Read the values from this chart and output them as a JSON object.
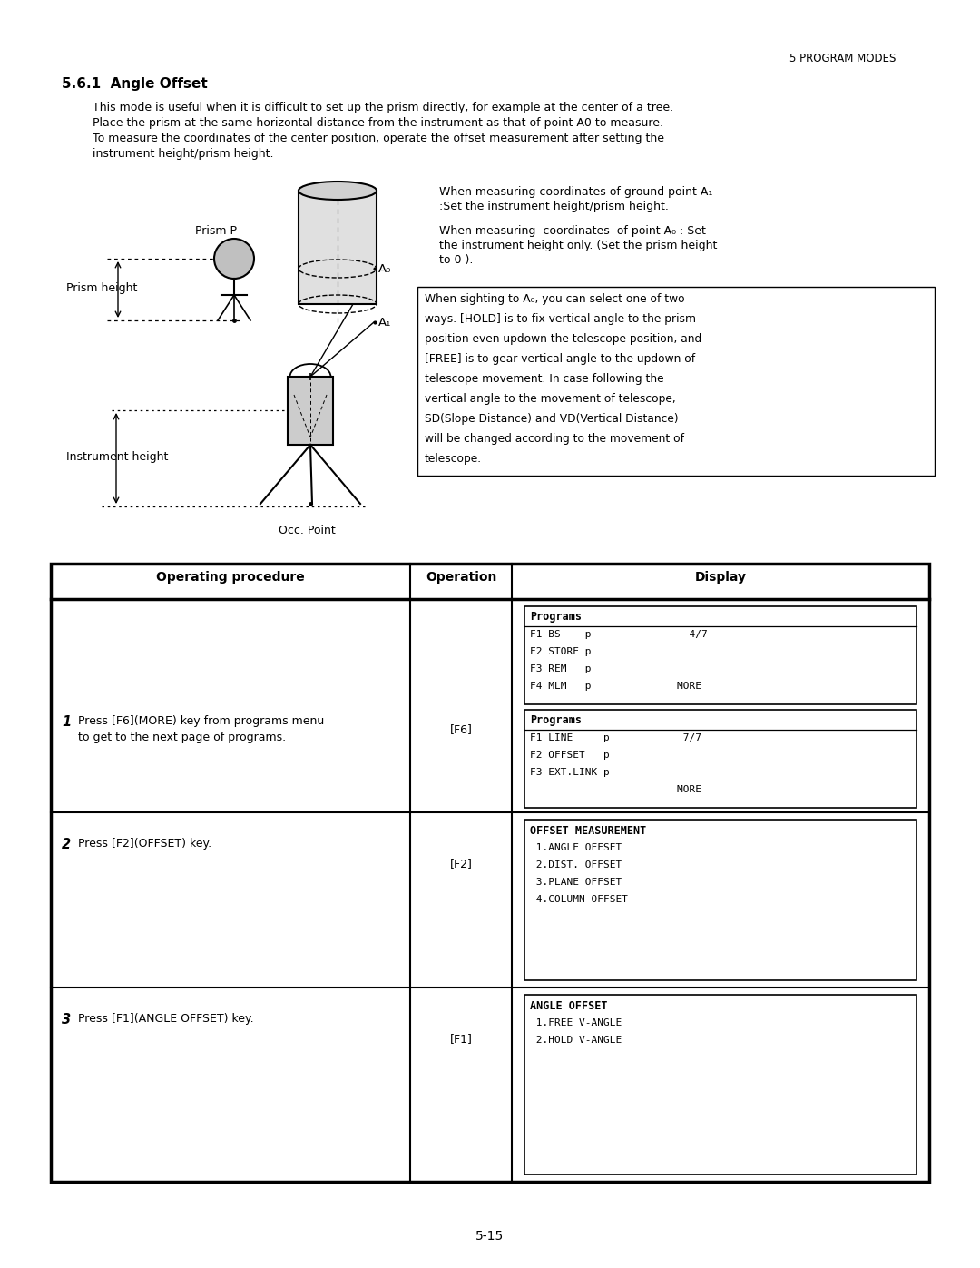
{
  "page_header": "5 PROGRAM MODES",
  "section_title": "5.6.1  Angle Offset",
  "section_text_line1": "This mode is useful when it is difficult to set up the prism directly, for example at the center of a tree.",
  "section_text_line2": "Place the prism at the same horizontal distance from the instrument as that of point A0 to measure.",
  "section_text_line3": "To measure the coordinates of the center position, operate the offset measurement after setting the",
  "section_text_line4": "instrument height/prism height.",
  "right_text1_line1": "When measuring coordinates of ground point A₁",
  "right_text1_line2": ":Set the instrument height/prism height.",
  "right_text2_line1": "When measuring  coordinates  of point A₀ : Set",
  "right_text2_line2": "the instrument height only. (Set the prism height",
  "right_text2_line3": "to 0 ).",
  "box_text_lines": [
    "When sighting to A₀, you can select one of two",
    "ways. [HOLD] is to fix vertical angle to the prism",
    "position even updown the telescope position, and",
    "[FREE] is to gear vertical angle to the updown of",
    "telescope movement. In case following the",
    "vertical angle to the movement of telescope,",
    "SD(Slope Distance) and VD(Vertical Distance)",
    "will be changed according to the movement of",
    "telescope."
  ],
  "label_prism_p": "Prism P",
  "label_a0": "A₀",
  "label_a1": "A₁",
  "label_prism_height": "Prism height",
  "label_instrument_height": "Instrument height",
  "label_occ_point": "Occ. Point",
  "table_col1": "Operating procedure",
  "table_col2": "Operation",
  "table_col3": "Display",
  "row1_num": "1",
  "row1_proc_line1": "Press [F6](MORE) key from programs menu",
  "row1_proc_line2": "to get to the next page of programs.",
  "row1_op": "[F6]",
  "row1_display1_title": "Programs",
  "row1_display1_lines": [
    "F1 BS    p                4/7",
    "F2 STORE p",
    "F3 REM   p",
    "F4 MLM   p              MORE"
  ],
  "row1_display2_title": "Programs",
  "row1_display2_lines": [
    "F1 LINE     p            7/7",
    "F2 OFFSET   p",
    "F3 EXT.LINK p",
    "                        MORE"
  ],
  "row2_num": "2",
  "row2_proc": "Press [F2](OFFSET) key.",
  "row2_op": "[F2]",
  "row2_display_title": "OFFSET MEASUREMENT",
  "row2_display_lines": [
    " 1.ANGLE OFFSET",
    " 2.DIST. OFFSET",
    " 3.PLANE OFFSET",
    " 4.COLUMN OFFSET"
  ],
  "row3_num": "3",
  "row3_proc": "Press [F1](ANGLE OFFSET) key.",
  "row3_op": "[F1]",
  "row3_display_title": "ANGLE OFFSET",
  "row3_display_lines": [
    " 1.FREE V-ANGLE",
    " 2.HOLD V-ANGLE"
  ],
  "page_num": "5-15",
  "bg_color": "#ffffff",
  "text_color": "#000000"
}
